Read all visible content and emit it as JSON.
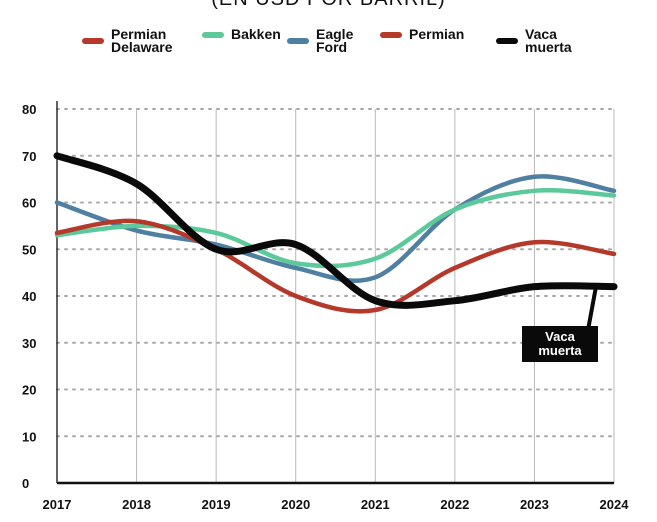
{
  "subtitle": "(EN USD POR BARRIL)",
  "chart_data": {
    "type": "line",
    "title": "",
    "subtitle": "(EN USD POR BARRIL)",
    "xlabel": "",
    "ylabel": "",
    "categories": [
      "2017",
      "2018",
      "2019",
      "2020",
      "2021",
      "2022",
      "2023",
      "2024"
    ],
    "x": [
      2017,
      2018,
      2019,
      2020,
      2021,
      2022,
      2023,
      2024
    ],
    "ylim": [
      0,
      80
    ],
    "yticks": [
      "0",
      "10",
      "20",
      "30",
      "40",
      "50",
      "60",
      "70",
      "80"
    ],
    "grid": true,
    "legend_position": "top",
    "series": [
      {
        "name": "Permian Delaware",
        "legend": "Permian\nDelaware",
        "color": "#b5392a",
        "values": [
          53.5,
          56,
          50,
          40,
          37,
          46,
          51.5,
          49
        ]
      },
      {
        "name": "Bakken",
        "legend": "Bakken",
        "color": "#5cc99a",
        "values": [
          53,
          55,
          53.5,
          47,
          48,
          58.5,
          62.5,
          61.5
        ]
      },
      {
        "name": "Eagle Ford",
        "legend": "Eagle\nFord",
        "color": "#4f7fa1",
        "values": [
          60,
          54,
          51,
          46,
          44,
          58.5,
          65.5,
          62.5
        ]
      },
      {
        "name": "Permian",
        "legend": "Permian",
        "color": "#b5392a",
        "values": [
          53.5,
          56,
          50,
          40,
          37,
          46,
          51.5,
          49
        ]
      },
      {
        "name": "Vaca muerta",
        "legend": "Vaca\nmuerta",
        "color": "#0a0a0a",
        "values": [
          70,
          64,
          50,
          51,
          39,
          39,
          42,
          42
        ]
      }
    ],
    "annotations": [
      {
        "text": "Vaca muerta",
        "lines": [
          "Vaca",
          "muerta"
        ],
        "x": 2024,
        "y": 42
      }
    ]
  }
}
